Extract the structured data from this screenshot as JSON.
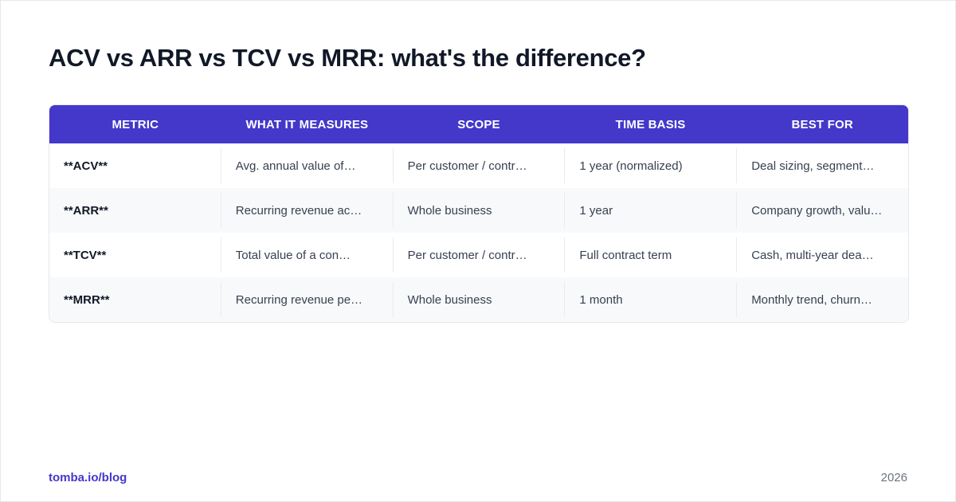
{
  "title": "ACV vs ARR vs TCV vs MRR: what's the difference?",
  "table": {
    "headers": [
      "METRIC",
      "WHAT IT MEASURES",
      "SCOPE",
      "TIME BASIS",
      "BEST FOR"
    ],
    "rows": [
      [
        "**ACV**",
        "Avg. annual value of…",
        "Per customer / contr…",
        "1 year (normalized)",
        "Deal sizing, segment…"
      ],
      [
        "**ARR**",
        "Recurring revenue ac…",
        "Whole business",
        "1 year",
        "Company growth, valu…"
      ],
      [
        "**TCV**",
        "Total value of a con…",
        "Per customer / contr…",
        "Full contract term",
        "Cash, multi-year dea…"
      ],
      [
        "**MRR**",
        "Recurring revenue pe…",
        "Whole business",
        "1 month",
        "Monthly trend, churn…"
      ]
    ]
  },
  "footer": {
    "source": "tomba.io/blog",
    "year": "2026"
  },
  "colors": {
    "accent": "#4338ca",
    "title": "#111827",
    "body_text": "#374151",
    "muted": "#6b7280",
    "row_alt": "#f8f9fb"
  }
}
